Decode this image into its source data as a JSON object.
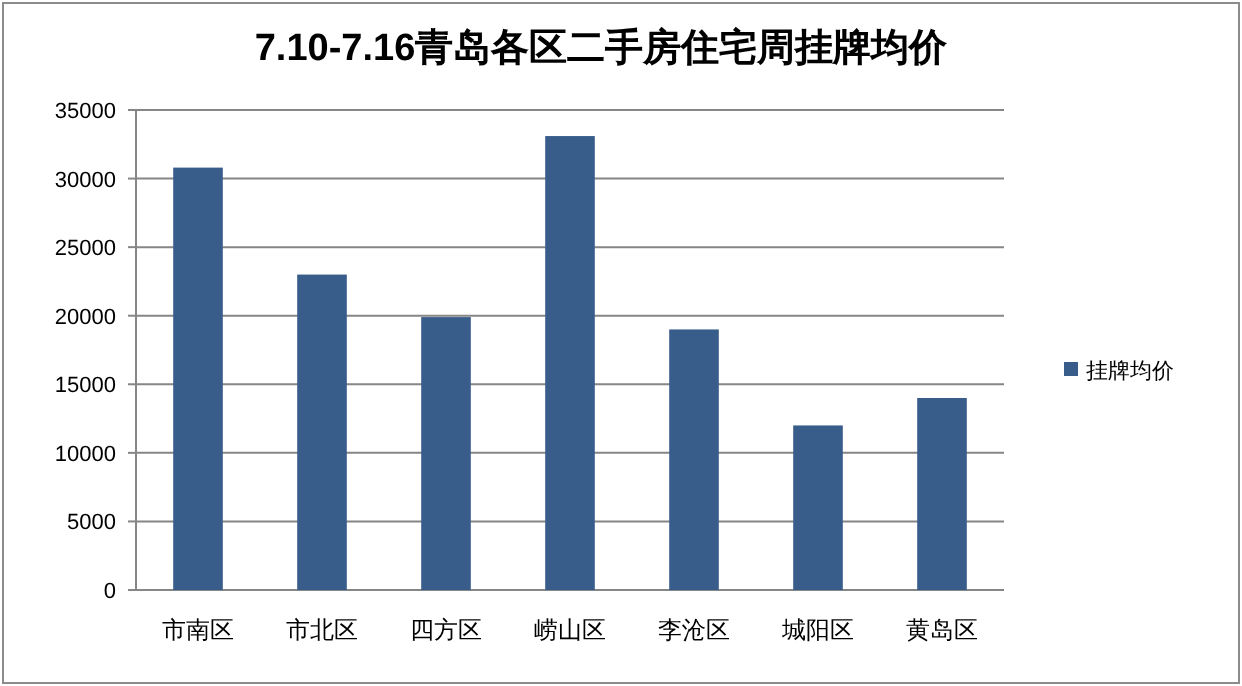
{
  "chart_data": {
    "type": "bar",
    "title": "7.10-7.16青岛各区二手房住宅周挂牌均价",
    "categories": [
      "市南区",
      "市北区",
      "四方区",
      "崂山区",
      "李沧区",
      "城阳区",
      "黄岛区"
    ],
    "series": [
      {
        "name": "挂牌均价",
        "color": "#385d8a",
        "values": [
          30800,
          23000,
          19900,
          33100,
          19000,
          12000,
          14000
        ]
      }
    ],
    "ylim": [
      0,
      35000
    ],
    "yticks": [
      0,
      5000,
      10000,
      15000,
      20000,
      25000,
      30000,
      35000
    ],
    "grid": "y",
    "legend": "right"
  }
}
